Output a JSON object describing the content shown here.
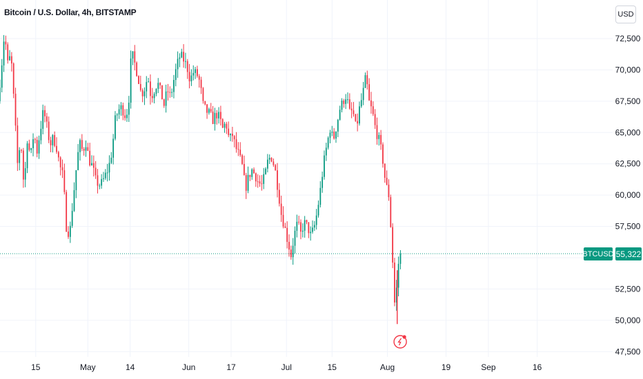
{
  "header": {
    "title": "Bitcoin / U.S. Dollar, 4h, BITSTAMP"
  },
  "controls": {
    "currency_label": "USD"
  },
  "last_price": {
    "symbol": "BTCUSD",
    "value": "55,322"
  },
  "colors": {
    "up": "#089981",
    "down": "#f23645",
    "grid": "#f0f3fa",
    "price_line": "#089981"
  },
  "icons": {
    "event_marker": "lightning-icon"
  },
  "chart_data": {
    "type": "candlestick",
    "title": "Bitcoin / U.S. Dollar, 4h, BITSTAMP",
    "ylim": [
      47000,
      74000
    ],
    "y_ticks": [
      {
        "value": 72500,
        "label": "72,500"
      },
      {
        "value": 70000,
        "label": "70,000"
      },
      {
        "value": 67500,
        "label": "67,500"
      },
      {
        "value": 65000,
        "label": "65,000"
      },
      {
        "value": 62500,
        "label": "62,500"
      },
      {
        "value": 60000,
        "label": "60,000"
      },
      {
        "value": 57500,
        "label": "57,500"
      },
      {
        "value": 55000,
        "label": "55,000"
      },
      {
        "value": 52500,
        "label": "52,500"
      },
      {
        "value": 50000,
        "label": "50,000"
      },
      {
        "value": 47500,
        "label": "47,500"
      }
    ],
    "x_ticks": [
      {
        "day": 15,
        "label": "15"
      },
      {
        "day": 31,
        "label": "May"
      },
      {
        "day": 44,
        "label": "14"
      },
      {
        "day": 62,
        "label": "Jun"
      },
      {
        "day": 75,
        "label": "17"
      },
      {
        "day": 92,
        "label": "Jul"
      },
      {
        "day": 106,
        "label": "15"
      },
      {
        "day": 123,
        "label": "Aug"
      },
      {
        "day": 141,
        "label": "19"
      },
      {
        "day": 154,
        "label": "Sep"
      },
      {
        "day": 169,
        "label": "16"
      }
    ],
    "last_value": 55322,
    "series_path": [
      [
        4,
        67500
      ],
      [
        5,
        70000
      ],
      [
        6,
        73000
      ],
      [
        7,
        70500
      ],
      [
        8,
        71200
      ],
      [
        9,
        67000
      ],
      [
        10,
        62500
      ],
      [
        11,
        64500
      ],
      [
        12,
        60500
      ],
      [
        13,
        64500
      ],
      [
        14,
        63000
      ],
      [
        15,
        65000
      ],
      [
        16,
        63500
      ],
      [
        17,
        65200
      ],
      [
        18,
        66800
      ],
      [
        19,
        65500
      ],
      [
        20,
        64000
      ],
      [
        21,
        64600
      ],
      [
        22,
        63800
      ],
      [
        23,
        62300
      ],
      [
        24,
        61500
      ],
      [
        25,
        57500
      ],
      [
        26,
        56800
      ],
      [
        27,
        59500
      ],
      [
        28,
        62000
      ],
      [
        29,
        64200
      ],
      [
        30,
        63500
      ],
      [
        31,
        64200
      ],
      [
        32,
        62800
      ],
      [
        33,
        62300
      ],
      [
        34,
        61200
      ],
      [
        35,
        60800
      ],
      [
        36,
        61000
      ],
      [
        37,
        61600
      ],
      [
        38,
        62200
      ],
      [
        39,
        63500
      ],
      [
        40,
        66000
      ],
      [
        41,
        66800
      ],
      [
        42,
        67000
      ],
      [
        43,
        66400
      ],
      [
        44,
        66800
      ],
      [
        45,
        71500
      ],
      [
        46,
        70500
      ],
      [
        47,
        69500
      ],
      [
        48,
        68000
      ],
      [
        49,
        68500
      ],
      [
        50,
        69500
      ],
      [
        51,
        67800
      ],
      [
        52,
        68400
      ],
      [
        53,
        69000
      ],
      [
        54,
        68200
      ],
      [
        55,
        67200
      ],
      [
        56,
        68400
      ],
      [
        57,
        67800
      ],
      [
        58,
        69200
      ],
      [
        59,
        70400
      ],
      [
        60,
        71200
      ],
      [
        61,
        70800
      ],
      [
        62,
        70300
      ],
      [
        63,
        69200
      ],
      [
        64,
        69800
      ],
      [
        65,
        69700
      ],
      [
        66,
        69000
      ],
      [
        67,
        67200
      ],
      [
        68,
        66700
      ],
      [
        69,
        66500
      ],
      [
        70,
        66000
      ],
      [
        71,
        66500
      ],
      [
        72,
        66200
      ],
      [
        73,
        65300
      ],
      [
        74,
        65800
      ],
      [
        75,
        64400
      ],
      [
        76,
        64800
      ],
      [
        77,
        63800
      ],
      [
        78,
        63200
      ],
      [
        79,
        62300
      ],
      [
        80,
        60500
      ],
      [
        81,
        61500
      ],
      [
        82,
        62000
      ],
      [
        83,
        61600
      ],
      [
        84,
        61000
      ],
      [
        85,
        60800
      ],
      [
        86,
        61600
      ],
      [
        87,
        62900
      ],
      [
        88,
        63000
      ],
      [
        89,
        62200
      ],
      [
        90,
        60500
      ],
      [
        91,
        58500
      ],
      [
        92,
        57500
      ],
      [
        93,
        56300
      ],
      [
        94,
        55200
      ],
      [
        95,
        56800
      ],
      [
        96,
        57800
      ],
      [
        97,
        56900
      ],
      [
        98,
        57800
      ],
      [
        99,
        57500
      ],
      [
        100,
        56800
      ],
      [
        101,
        57300
      ],
      [
        102,
        58600
      ],
      [
        103,
        60400
      ],
      [
        104,
        62500
      ],
      [
        105,
        64000
      ],
      [
        106,
        65300
      ],
      [
        107,
        64400
      ],
      [
        108,
        65600
      ],
      [
        109,
        66900
      ],
      [
        110,
        67500
      ],
      [
        111,
        68000
      ],
      [
        112,
        66600
      ],
      [
        113,
        66700
      ],
      [
        114,
        65200
      ],
      [
        115,
        66900
      ],
      [
        116,
        68000
      ],
      [
        117,
        69500
      ],
      [
        118,
        67400
      ],
      [
        119,
        66600
      ],
      [
        120,
        65200
      ],
      [
        121,
        64400
      ],
      [
        122,
        63200
      ],
      [
        123,
        61000
      ],
      [
        124,
        60000
      ],
      [
        125,
        56000
      ],
      [
        125.5,
        52800
      ],
      [
        126,
        50500
      ],
      [
        126.6,
        53500
      ],
      [
        127.3,
        55322
      ]
    ],
    "annotations": [
      {
        "day": 126.5,
        "type": "event-marker"
      }
    ]
  }
}
